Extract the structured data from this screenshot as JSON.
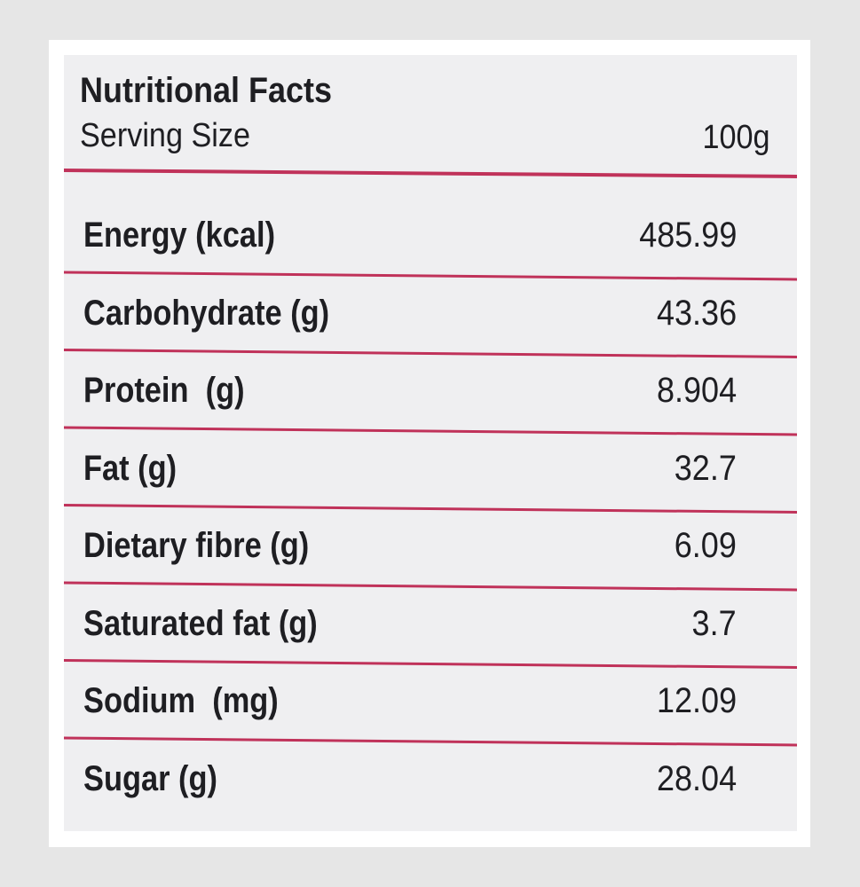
{
  "header": {
    "title": "Nutritional Facts",
    "serving_label": "Serving Size",
    "serving_value": "100g"
  },
  "table": {
    "rows": [
      [
        "Energy (kcal)",
        "485.99"
      ],
      [
        "Carbohydrate (g)",
        "43.36"
      ],
      [
        "Protein  (g)",
        "8.904"
      ],
      [
        "Fat (g)",
        "32.7"
      ],
      [
        "Dietary fibre (g)",
        "6.09"
      ],
      [
        "Saturated fat (g)",
        "3.7"
      ],
      [
        "Sodium  (mg)",
        "12.09"
      ],
      [
        "Sugar (g)",
        "28.04"
      ]
    ]
  }
}
